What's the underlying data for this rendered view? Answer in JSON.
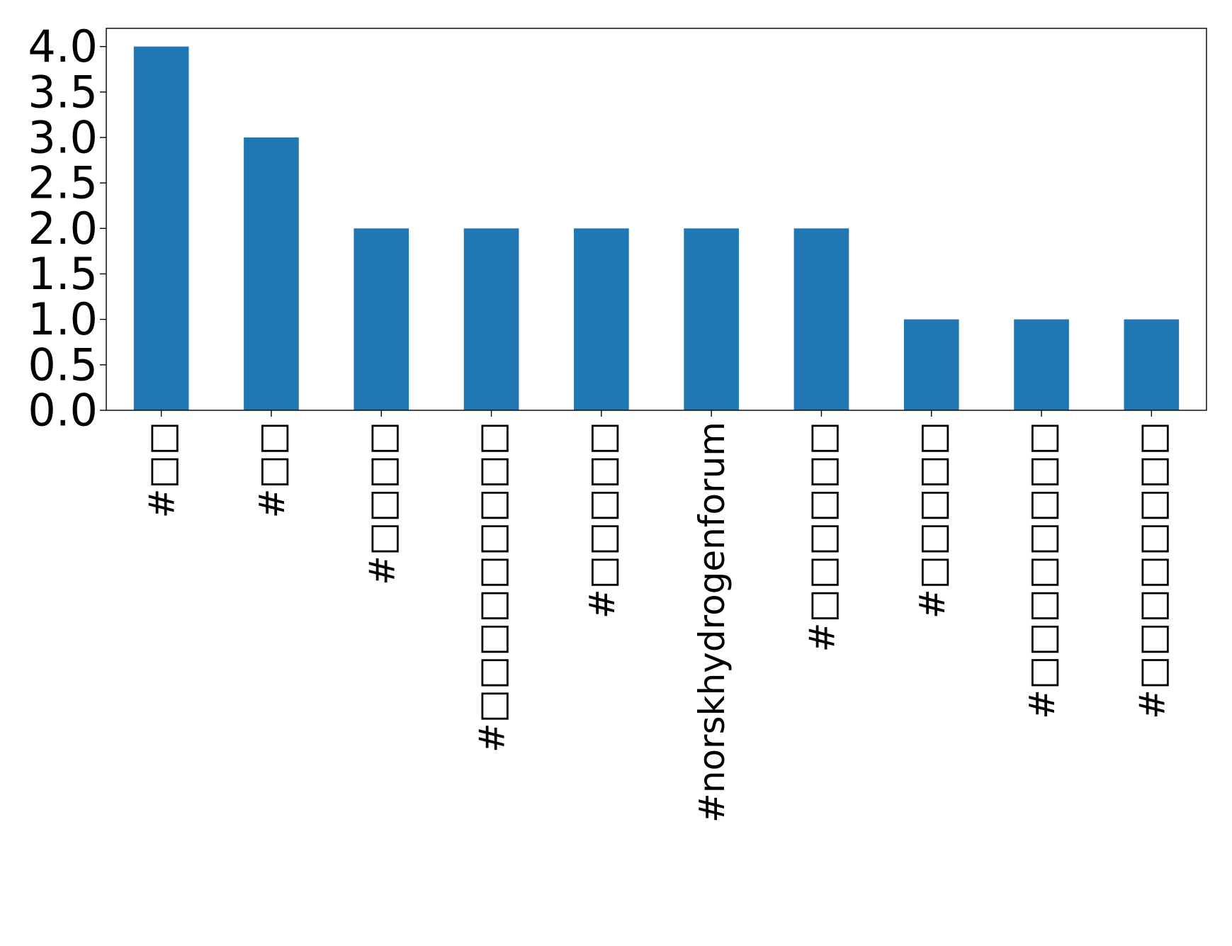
{
  "chart_data": {
    "type": "bar",
    "categories": [
      "#□□",
      "#□□",
      "#□□□□",
      "#□□□□□□□□□",
      "#□□□□□",
      "#norskhydrogenforum",
      "#□□□□□□",
      "#□□□□□",
      "#□□□□□□□□",
      "#□□□□□□□□"
    ],
    "values": [
      4,
      3,
      2,
      2,
      2,
      2,
      2,
      1,
      1,
      1
    ],
    "title": "",
    "xlabel": "",
    "ylabel": "",
    "ylim": [
      0,
      4.2
    ],
    "yticks": [
      "0.0",
      "0.5",
      "1.0",
      "1.5",
      "2.0",
      "2.5",
      "3.0",
      "3.5",
      "4.0"
    ],
    "bar_color": "#1f77b4",
    "grid": false,
    "legend": "none"
  }
}
